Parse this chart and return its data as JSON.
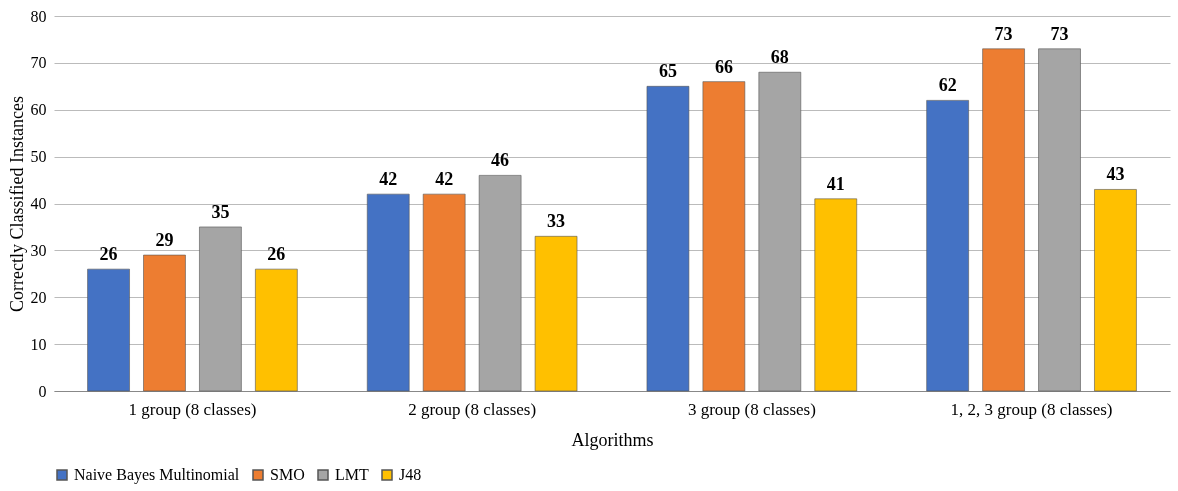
{
  "chart_data": {
    "type": "bar",
    "xlabel": "Algorithms",
    "ylabel": "Correctly Classified Instances",
    "categories": [
      "1 group (8 classes)",
      "2 group (8 classes)",
      "3 group (8 classes)",
      "1, 2, 3 group (8 classes)"
    ],
    "series": [
      {
        "name": "Naive Bayes Multinomial",
        "color": "#4472c4",
        "values": [
          26,
          42,
          65,
          62
        ]
      },
      {
        "name": "SMO",
        "color": "#ed7d31",
        "values": [
          29,
          42,
          66,
          73
        ]
      },
      {
        "name": "LMT",
        "color": "#a5a5a5",
        "values": [
          35,
          46,
          68,
          73
        ]
      },
      {
        "name": "J48",
        "color": "#ffc000",
        "values": [
          26,
          33,
          41,
          43
        ]
      }
    ],
    "ylim": [
      0,
      80
    ],
    "yticks": [
      0,
      10,
      20,
      30,
      40,
      50,
      60,
      70,
      80
    ],
    "grid": "y",
    "legend": "bottom",
    "data_labels": true
  }
}
